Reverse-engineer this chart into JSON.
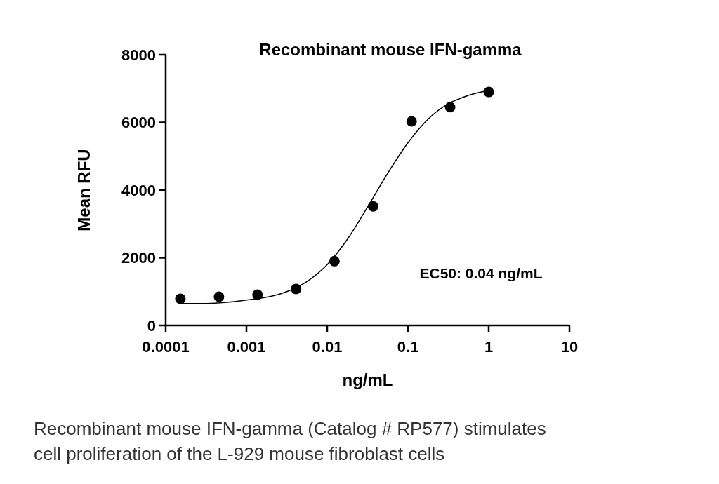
{
  "chart_data": {
    "type": "scatter",
    "title": "Recombinant mouse IFN-gamma",
    "xlabel": "ng/mL",
    "ylabel": "Mean RFU",
    "log": "x",
    "xlim": [
      0.0001,
      10
    ],
    "xticks": [
      0.0001,
      0.001,
      0.01,
      0.1,
      1,
      10
    ],
    "ylim": [
      0,
      8000
    ],
    "yticks": [
      0,
      2000,
      4000,
      6000,
      8000
    ],
    "grid": false,
    "series": [
      {
        "color": "#000000",
        "marker": "circle",
        "x": [
          0.000152,
          0.000457,
          0.00137,
          0.00412,
          0.0123,
          0.037,
          0.111,
          0.333,
          1
        ],
        "values": [
          790,
          850,
          910,
          1080,
          1900,
          3520,
          6030,
          6450,
          6900
        ]
      },
      {
        "type": "line",
        "color": "#000000",
        "marker": "none",
        "line_style": "solid",
        "x": [
          0.000151,
          0.000316,
          0.001,
          0.00316,
          0.00562,
          0.01,
          0.0178,
          0.0316,
          0.0562,
          0.1,
          0.178,
          0.316,
          0.562,
          1
        ],
        "values": [
          650,
          650,
          750,
          1000,
          1300,
          1800,
          2550,
          3500,
          4500,
          5400,
          6100,
          6550,
          6800,
          6950
        ]
      }
    ],
    "annotations": [
      "EC50: 0.04 ng/mL",
      "Recombinant mouse IFN-gamma   (Catalog # RP577) stimulates cell proliferation of the L-929 mouse fibroblast cells"
    ]
  }
}
